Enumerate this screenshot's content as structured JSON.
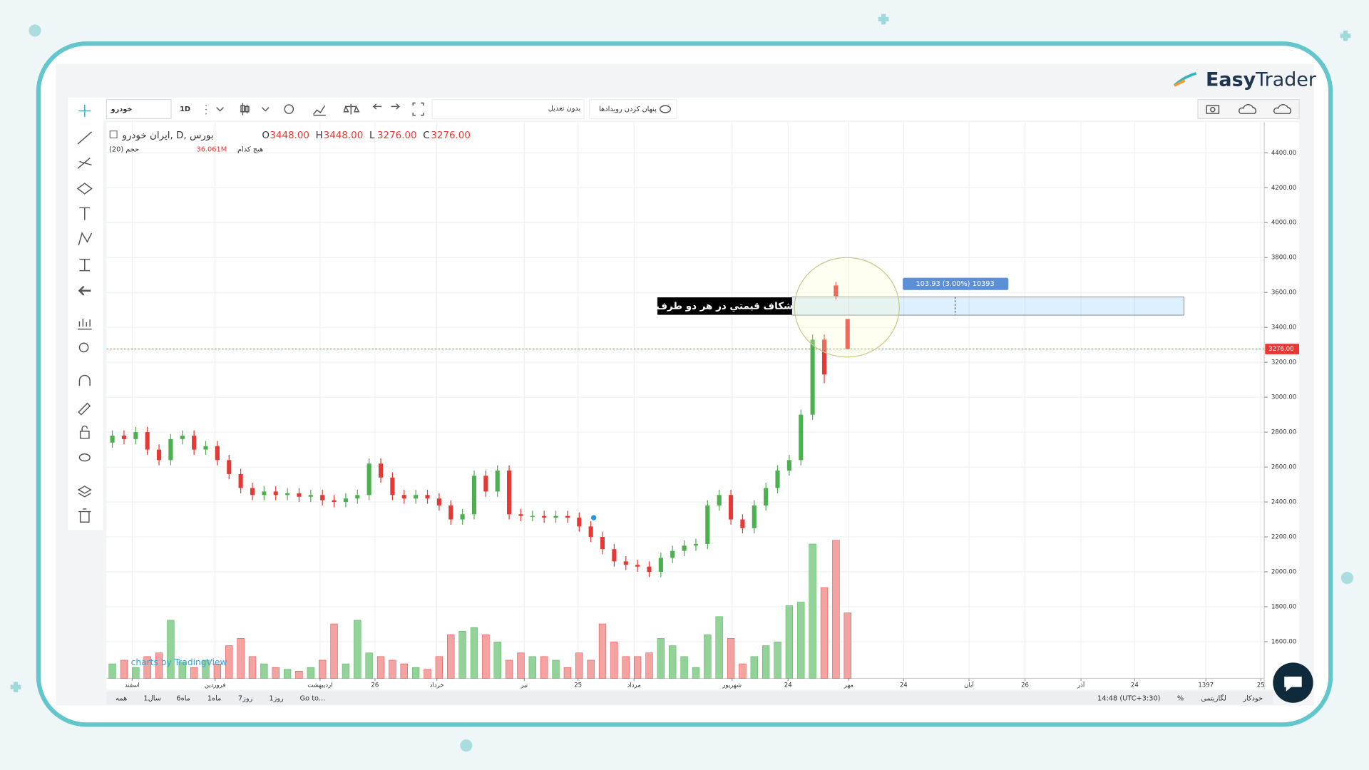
{
  "logo": {
    "brand_bold": "Easy",
    "brand_light": "Trader"
  },
  "toolbar": {
    "symbol": "خودرو",
    "interval": "1D",
    "adjust": "بدون تعدیل",
    "hide_events": "پنهان کردن رویدادها"
  },
  "legend": {
    "title": "ایران خودرو, D, بورس",
    "ohlc": [
      {
        "key": "O",
        "value": "3448.00"
      },
      {
        "key": "H",
        "value": "3448.00"
      },
      {
        "key": "L",
        "value": "3276.00"
      },
      {
        "key": "C",
        "value": "3276.00"
      }
    ],
    "volume_title": "حجم (20)",
    "volume_readout": "36.061M",
    "ma_label": "هیچ کدام"
  },
  "watermark": "charts by TradingView",
  "bottom_bar": {
    "ranges": [
      "همه",
      "1سال",
      "6ماه",
      "1ماه",
      "7روز",
      "1روز"
    ],
    "goto": "Go to...",
    "time": "14:48 (UTC+3:30)",
    "percent": "%",
    "log": "لگاریتمی",
    "auto": "خودکار"
  },
  "chart_data": {
    "type": "candlestick",
    "open": [
      2740,
      2780,
      2760,
      2800,
      2700,
      2640,
      2760,
      2780,
      2700,
      2720,
      2640,
      2560,
      2480,
      2440,
      2460,
      2440,
      2450,
      2430,
      2440,
      2410,
      2400,
      2420,
      2440,
      2620,
      2540,
      2440,
      2420,
      2440,
      2420,
      2380,
      2300,
      2330,
      2550,
      2460,
      2580,
      2330,
      2320,
      2320,
      2310,
      2320,
      2310,
      2260,
      2200,
      2130,
      2060,
      2040,
      2030,
      2000,
      2080,
      2120,
      2150,
      2160,
      2380,
      2440,
      2300,
      2250,
      2380,
      2480,
      2580,
      2640,
      2900,
      3330,
      3640,
      3448
    ],
    "high": [
      2810,
      2810,
      2830,
      2830,
      2730,
      2790,
      2810,
      2810,
      2750,
      2750,
      2670,
      2590,
      2510,
      2490,
      2490,
      2480,
      2480,
      2470,
      2470,
      2440,
      2450,
      2470,
      2650,
      2650,
      2570,
      2470,
      2470,
      2470,
      2450,
      2410,
      2360,
      2580,
      2580,
      2610,
      2610,
      2360,
      2350,
      2350,
      2350,
      2350,
      2340,
      2290,
      2230,
      2160,
      2090,
      2070,
      2060,
      2110,
      2150,
      2180,
      2190,
      2410,
      2470,
      2470,
      2330,
      2410,
      2510,
      2610,
      2670,
      2930,
      3360,
      3360,
      3660,
      3448
    ],
    "low": [
      2710,
      2730,
      2730,
      2670,
      2610,
      2610,
      2730,
      2670,
      2670,
      2610,
      2530,
      2450,
      2410,
      2410,
      2410,
      2410,
      2400,
      2400,
      2380,
      2370,
      2370,
      2390,
      2410,
      2510,
      2410,
      2390,
      2390,
      2390,
      2350,
      2270,
      2270,
      2300,
      2430,
      2430,
      2300,
      2290,
      2290,
      2280,
      2280,
      2280,
      2230,
      2170,
      2100,
      2030,
      2010,
      2000,
      1970,
      1970,
      2050,
      2090,
      2120,
      2130,
      2350,
      2270,
      2220,
      2220,
      2350,
      2450,
      2550,
      2610,
      2870,
      3080,
      3560,
      3276
    ],
    "close": [
      2780,
      2760,
      2800,
      2700,
      2640,
      2760,
      2780,
      2700,
      2720,
      2640,
      2560,
      2480,
      2440,
      2460,
      2440,
      2450,
      2430,
      2440,
      2410,
      2400,
      2420,
      2440,
      2620,
      2540,
      2440,
      2420,
      2440,
      2420,
      2380,
      2300,
      2330,
      2550,
      2460,
      2580,
      2330,
      2320,
      2320,
      2310,
      2320,
      2310,
      2260,
      2200,
      2130,
      2060,
      2040,
      2030,
      2000,
      2080,
      2120,
      2150,
      2160,
      2380,
      2440,
      2300,
      2250,
      2380,
      2480,
      2580,
      2640,
      2900,
      3330,
      3130,
      3580,
      3276
    ],
    "volume": [
      8,
      10,
      6,
      12,
      14,
      32,
      9,
      6,
      10,
      8,
      18,
      22,
      12,
      8,
      6,
      5,
      4,
      6,
      10,
      30,
      8,
      32,
      14,
      12,
      10,
      8,
      6,
      5,
      12,
      24,
      26,
      28,
      24,
      20,
      10,
      14,
      12,
      12,
      10,
      6,
      14,
      10,
      30,
      20,
      12,
      12,
      14,
      22,
      18,
      12,
      6,
      24,
      34,
      22,
      8,
      12,
      18,
      20,
      40,
      42,
      74,
      50,
      76,
      36.061
    ],
    "up_color": "#4caf50",
    "down_color": "#e53935",
    "volume_up_color": "#93d39a",
    "volume_down_color": "#f4a3a3",
    "xlim": [
      -0.5,
      98.7
    ],
    "xticks": [
      {
        "value": 1.7,
        "label": "اسفند"
      },
      {
        "value": 8.8,
        "label": "فروردین"
      },
      {
        "value": 17.8,
        "label": "اردیبهشت"
      },
      {
        "value": 22.5,
        "label": "26"
      },
      {
        "value": 27.8,
        "label": "خرداد"
      },
      {
        "value": 35.3,
        "label": "تیر"
      },
      {
        "value": 39.9,
        "label": "25"
      },
      {
        "value": 44.7,
        "label": "مرداد"
      },
      {
        "value": 53.1,
        "label": "شهریور"
      },
      {
        "value": 57.9,
        "label": "24"
      },
      {
        "value": 63.1,
        "label": "مهر"
      },
      {
        "value": 67.8,
        "label": "24"
      },
      {
        "value": 73.4,
        "label": "آبان"
      },
      {
        "value": 78.2,
        "label": "26"
      },
      {
        "value": 83.0,
        "label": "آذر"
      },
      {
        "value": 87.6,
        "label": "24"
      },
      {
        "value": 93.7,
        "label": "1397"
      },
      {
        "value": 98.4,
        "label": "25"
      }
    ],
    "ylim": [
      1390,
      4575
    ],
    "yticks": [
      {
        "value": 1600,
        "label": "1600.00"
      },
      {
        "value": 1800,
        "label": "1800.00"
      },
      {
        "value": 2000,
        "label": "2000.00"
      },
      {
        "value": 2200,
        "label": "2200.00"
      },
      {
        "value": 2400,
        "label": "2400.00"
      },
      {
        "value": 2600,
        "label": "2600.00"
      },
      {
        "value": 2800,
        "label": "2800.00"
      },
      {
        "value": 3000,
        "label": "3000.00"
      },
      {
        "value": 3200,
        "label": "3200.00"
      },
      {
        "value": 3400,
        "label": "3400.00"
      },
      {
        "value": 3600,
        "label": "3600.00"
      },
      {
        "value": 3800,
        "label": "3800.00"
      },
      {
        "value": 4000,
        "label": "4000.00"
      },
      {
        "value": 4200,
        "label": "4200.00"
      },
      {
        "value": 4400,
        "label": "4400.00"
      }
    ],
    "grid": true,
    "last_price": {
      "value": 3276,
      "label": "3276.00"
    },
    "annotation": {
      "text": "شکاف قیمتي در هر دو طرف",
      "measure_label": "103.93 (3.00%) 10393",
      "low": 3470,
      "high": 3573.93
    }
  }
}
